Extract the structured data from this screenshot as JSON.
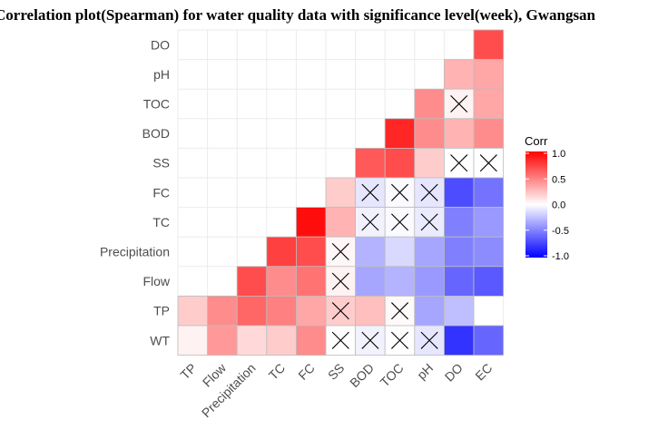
{
  "chart_data": {
    "type": "heatmap",
    "title": "Correlation plot(Spearman) for water quality data with significance level(week), Gwangsan",
    "x_labels": [
      "TP",
      "Flow",
      "Precipitation",
      "TC",
      "FC",
      "SS",
      "BOD",
      "TOC",
      "pH",
      "DO",
      "EC"
    ],
    "y_labels": [
      "WT",
      "TP",
      "Flow",
      "Precipitation",
      "TC",
      "FC",
      "SS",
      "BOD",
      "TOC",
      "pH",
      "DO"
    ],
    "legend": {
      "title": "Corr",
      "ticks": [
        "1.0",
        "0.5",
        "0.0",
        "-0.5",
        "-1.0"
      ],
      "range": [
        -1,
        1
      ],
      "position": "right"
    },
    "colors": {
      "high": "#ff0000",
      "mid": "#ffffff",
      "low": "#0000ff"
    },
    "grid": true,
    "cells": [
      {
        "row": "DO",
        "col": "EC",
        "value": 0.7,
        "insignificant": false
      },
      {
        "row": "pH",
        "col": "DO",
        "value": 0.3,
        "insignificant": false
      },
      {
        "row": "pH",
        "col": "EC",
        "value": 0.35,
        "insignificant": false
      },
      {
        "row": "TOC",
        "col": "pH",
        "value": 0.45,
        "insignificant": false
      },
      {
        "row": "TOC",
        "col": "DO",
        "value": 0.05,
        "insignificant": true
      },
      {
        "row": "TOC",
        "col": "EC",
        "value": 0.35,
        "insignificant": false
      },
      {
        "row": "BOD",
        "col": "TOC",
        "value": 0.85,
        "insignificant": false
      },
      {
        "row": "BOD",
        "col": "pH",
        "value": 0.45,
        "insignificant": false
      },
      {
        "row": "BOD",
        "col": "DO",
        "value": 0.3,
        "insignificant": false
      },
      {
        "row": "BOD",
        "col": "EC",
        "value": 0.45,
        "insignificant": false
      },
      {
        "row": "SS",
        "col": "BOD",
        "value": 0.65,
        "insignificant": false
      },
      {
        "row": "SS",
        "col": "TOC",
        "value": 0.7,
        "insignificant": false
      },
      {
        "row": "SS",
        "col": "pH",
        "value": 0.2,
        "insignificant": false
      },
      {
        "row": "SS",
        "col": "DO",
        "value": 0.0,
        "insignificant": true
      },
      {
        "row": "SS",
        "col": "EC",
        "value": 0.0,
        "insignificant": true
      },
      {
        "row": "FC",
        "col": "SS",
        "value": 0.2,
        "insignificant": false
      },
      {
        "row": "FC",
        "col": "BOD",
        "value": -0.1,
        "insignificant": true
      },
      {
        "row": "FC",
        "col": "TOC",
        "value": -0.02,
        "insignificant": true
      },
      {
        "row": "FC",
        "col": "pH",
        "value": -0.1,
        "insignificant": true
      },
      {
        "row": "FC",
        "col": "DO",
        "value": -0.7,
        "insignificant": false
      },
      {
        "row": "FC",
        "col": "EC",
        "value": -0.55,
        "insignificant": false
      },
      {
        "row": "TC",
        "col": "FC",
        "value": 0.95,
        "insignificant": false
      },
      {
        "row": "TC",
        "col": "SS",
        "value": 0.3,
        "insignificant": false
      },
      {
        "row": "TC",
        "col": "BOD",
        "value": -0.05,
        "insignificant": true
      },
      {
        "row": "TC",
        "col": "TOC",
        "value": -0.02,
        "insignificant": true
      },
      {
        "row": "TC",
        "col": "pH",
        "value": -0.08,
        "insignificant": true
      },
      {
        "row": "TC",
        "col": "DO",
        "value": -0.5,
        "insignificant": false
      },
      {
        "row": "TC",
        "col": "EC",
        "value": -0.4,
        "insignificant": false
      },
      {
        "row": "Precipitation",
        "col": "TC",
        "value": 0.75,
        "insignificant": false
      },
      {
        "row": "Precipitation",
        "col": "FC",
        "value": 0.7,
        "insignificant": false
      },
      {
        "row": "Precipitation",
        "col": "SS",
        "value": 0.03,
        "insignificant": true
      },
      {
        "row": "Precipitation",
        "col": "BOD",
        "value": -0.3,
        "insignificant": false
      },
      {
        "row": "Precipitation",
        "col": "TOC",
        "value": -0.15,
        "insignificant": false
      },
      {
        "row": "Precipitation",
        "col": "pH",
        "value": -0.35,
        "insignificant": false
      },
      {
        "row": "Precipitation",
        "col": "DO",
        "value": -0.5,
        "insignificant": false
      },
      {
        "row": "Precipitation",
        "col": "EC",
        "value": -0.45,
        "insignificant": false
      },
      {
        "row": "Flow",
        "col": "Precipitation",
        "value": 0.7,
        "insignificant": false
      },
      {
        "row": "Flow",
        "col": "TC",
        "value": 0.45,
        "insignificant": false
      },
      {
        "row": "Flow",
        "col": "FC",
        "value": 0.55,
        "insignificant": false
      },
      {
        "row": "Flow",
        "col": "SS",
        "value": 0.05,
        "insignificant": true
      },
      {
        "row": "Flow",
        "col": "BOD",
        "value": -0.35,
        "insignificant": false
      },
      {
        "row": "Flow",
        "col": "TOC",
        "value": -0.3,
        "insignificant": false
      },
      {
        "row": "Flow",
        "col": "pH",
        "value": -0.4,
        "insignificant": false
      },
      {
        "row": "Flow",
        "col": "DO",
        "value": -0.6,
        "insignificant": false
      },
      {
        "row": "Flow",
        "col": "EC",
        "value": -0.65,
        "insignificant": false
      },
      {
        "row": "TP",
        "col": "TP",
        "value": 0.2,
        "insignificant": false
      },
      {
        "row": "TP",
        "col": "Flow",
        "value": 0.45,
        "insignificant": false
      },
      {
        "row": "TP",
        "col": "Precipitation",
        "value": 0.6,
        "insignificant": false
      },
      {
        "row": "TP",
        "col": "TC",
        "value": 0.5,
        "insignificant": false
      },
      {
        "row": "TP",
        "col": "FC",
        "value": 0.35,
        "insignificant": false
      },
      {
        "row": "TP",
        "col": "SS",
        "value": 0.2,
        "insignificant": true
      },
      {
        "row": "TP",
        "col": "BOD",
        "value": 0.25,
        "insignificant": false
      },
      {
        "row": "TP",
        "col": "TOC",
        "value": 0.02,
        "insignificant": true
      },
      {
        "row": "TP",
        "col": "pH",
        "value": -0.35,
        "insignificant": false
      },
      {
        "row": "TP",
        "col": "DO",
        "value": -0.25,
        "insignificant": false
      },
      {
        "row": "WT",
        "col": "TP",
        "value": 0.05,
        "insignificant": false
      },
      {
        "row": "WT",
        "col": "Flow",
        "value": 0.4,
        "insignificant": false
      },
      {
        "row": "WT",
        "col": "Precipitation",
        "value": 0.15,
        "insignificant": false
      },
      {
        "row": "WT",
        "col": "TC",
        "value": 0.2,
        "insignificant": false
      },
      {
        "row": "WT",
        "col": "FC",
        "value": 0.45,
        "insignificant": false
      },
      {
        "row": "WT",
        "col": "SS",
        "value": 0.0,
        "insignificant": true
      },
      {
        "row": "WT",
        "col": "BOD",
        "value": -0.05,
        "insignificant": true
      },
      {
        "row": "WT",
        "col": "TOC",
        "value": 0.0,
        "insignificant": true
      },
      {
        "row": "WT",
        "col": "pH",
        "value": -0.1,
        "insignificant": true
      },
      {
        "row": "WT",
        "col": "DO",
        "value": -0.8,
        "insignificant": false
      },
      {
        "row": "WT",
        "col": "EC",
        "value": -0.6,
        "insignificant": false
      }
    ]
  }
}
